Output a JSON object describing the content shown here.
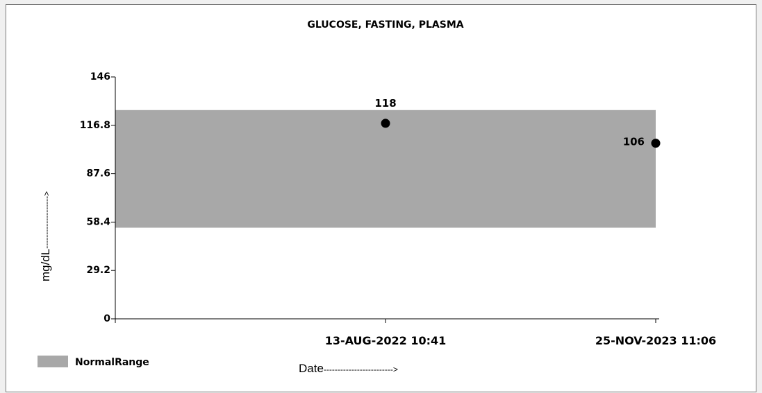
{
  "chart_data": {
    "type": "scatter",
    "title": "GLUCOSE, FASTING, PLASMA",
    "xlabel": "Date",
    "ylabel": "mg/dL",
    "ylim": [
      0,
      146
    ],
    "y_ticks": [
      0,
      29.2,
      58.4,
      87.6,
      116.8,
      146
    ],
    "y_tick_labels": [
      "0",
      "29.2",
      "58.4",
      "87.6",
      "116.8",
      "146"
    ],
    "x_categories": [
      "13-AUG-2022 10:41",
      "25-NOV-2023 11:06"
    ],
    "points": [
      {
        "x": "13-AUG-2022 10:41",
        "y": 118,
        "label": "118"
      },
      {
        "x": "25-NOV-2023 11:06",
        "y": 106,
        "label": "106"
      }
    ],
    "normal_range": {
      "low": 55,
      "high": 126,
      "color": "#a8a8a8"
    },
    "legend": [
      {
        "label": "NormalRange",
        "color": "#a8a8a8"
      }
    ],
    "legend_position": "bottom-left",
    "point_color": "#000000"
  },
  "axis_labels": {
    "y": "mg/dL",
    "y_arrow": "------------------->",
    "x": "Date",
    "x_arrow": "------------------------->"
  }
}
